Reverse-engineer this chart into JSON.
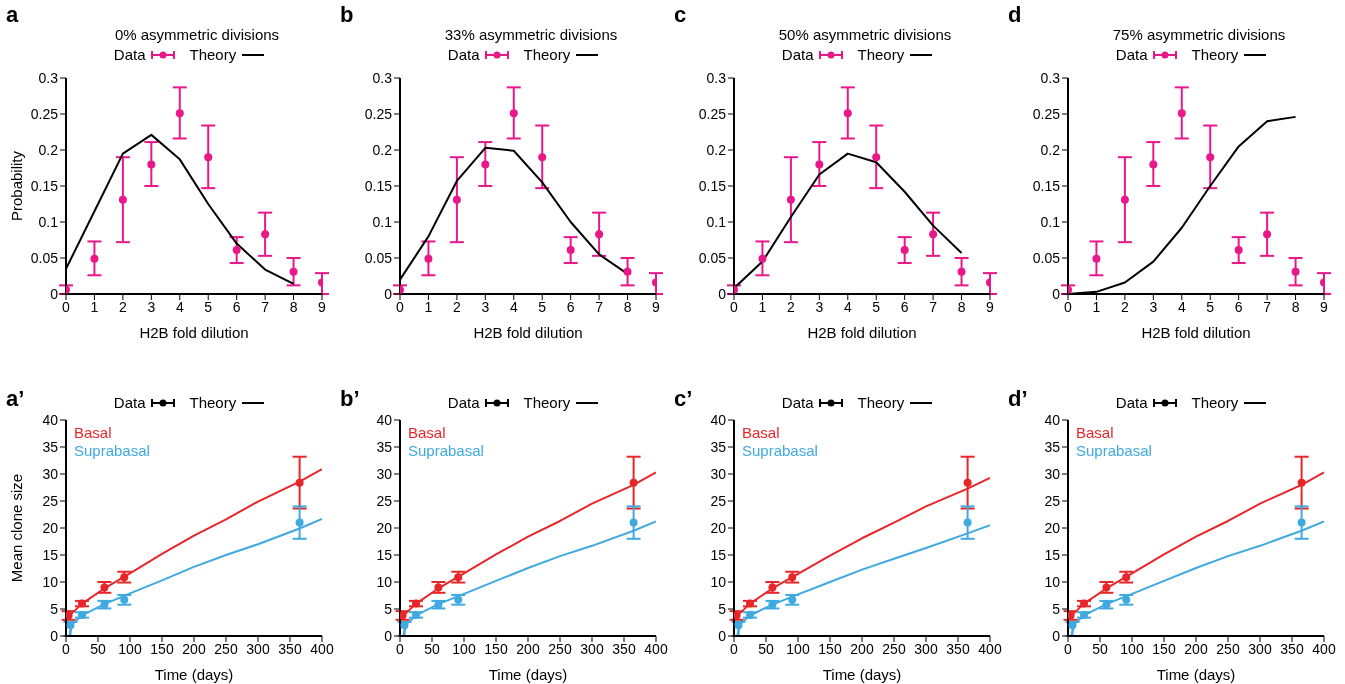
{
  "chart_data": [
    {
      "type": "scatter",
      "title": "0% asymmetric divisions",
      "xlabel": "H2B fold dilution",
      "ylabel": "Probability",
      "annotations": [
        "a"
      ],
      "legend": "top",
      "x": [
        0,
        1,
        2,
        3,
        4,
        5,
        6,
        7,
        8,
        9
      ],
      "xlim": [
        0,
        9
      ],
      "xticks": [
        0,
        1,
        2,
        3,
        4,
        5,
        6,
        7,
        8,
        9
      ],
      "ylim": [
        0,
        0.3
      ],
      "yticks": [
        0,
        0.05,
        0.1,
        0.15,
        0.2,
        0.25,
        0.3
      ],
      "series": [
        {
          "name": "Data",
          "marker": "circle",
          "color": "#e8178a",
          "values": [
            0.006,
            0.049,
            0.131,
            0.18,
            0.251,
            0.19,
            0.061,
            0.083,
            0.031,
            0.016
          ],
          "errors": [
            [
              0,
              0.012
            ],
            [
              0.026,
              0.073
            ],
            [
              0.072,
              0.19
            ],
            [
              0.15,
              0.211
            ],
            [
              0.216,
              0.287
            ],
            [
              0.147,
              0.234
            ],
            [
              0.043,
              0.079
            ],
            [
              0.053,
              0.113
            ],
            [
              0.012,
              0.05
            ],
            [
              0,
              0.029
            ]
          ]
        },
        {
          "name": "Theory",
          "type": "line",
          "marker": "none",
          "color": "#000000",
          "x": [
            0,
            1,
            2,
            3,
            4,
            5,
            6,
            7,
            8
          ],
          "values": [
            0.035,
            0.115,
            0.195,
            0.221,
            0.187,
            0.125,
            0.07,
            0.034,
            0.014
          ]
        }
      ]
    },
    {
      "type": "scatter",
      "title": "33% asymmetric divisions",
      "xlabel": "H2B fold dilution",
      "annotations": [
        "b"
      ],
      "legend": "top",
      "x": [
        0,
        1,
        2,
        3,
        4,
        5,
        6,
        7,
        8,
        9
      ],
      "xlim": [
        0,
        9
      ],
      "xticks": [
        0,
        1,
        2,
        3,
        4,
        5,
        6,
        7,
        8,
        9
      ],
      "ylim": [
        0,
        0.3
      ],
      "yticks": [
        0,
        0.05,
        0.1,
        0.15,
        0.2,
        0.25,
        0.3
      ],
      "series": [
        {
          "name": "Data",
          "marker": "circle",
          "color": "#e8178a",
          "values": [
            0.006,
            0.049,
            0.131,
            0.18,
            0.251,
            0.19,
            0.061,
            0.083,
            0.031,
            0.016
          ],
          "errors": [
            [
              0,
              0.012
            ],
            [
              0.026,
              0.073
            ],
            [
              0.072,
              0.19
            ],
            [
              0.15,
              0.211
            ],
            [
              0.216,
              0.287
            ],
            [
              0.147,
              0.234
            ],
            [
              0.043,
              0.079
            ],
            [
              0.053,
              0.113
            ],
            [
              0.012,
              0.05
            ],
            [
              0,
              0.029
            ]
          ]
        },
        {
          "name": "Theory",
          "type": "line",
          "marker": "none",
          "color": "#000000",
          "x": [
            0,
            1,
            2,
            3,
            4,
            5,
            6,
            7,
            8
          ],
          "values": [
            0.02,
            0.08,
            0.157,
            0.203,
            0.199,
            0.155,
            0.1,
            0.055,
            0.028
          ]
        }
      ]
    },
    {
      "type": "scatter",
      "title": "50% asymmetric divisions",
      "xlabel": "H2B fold dilution",
      "annotations": [
        "c"
      ],
      "legend": "top",
      "x": [
        0,
        1,
        2,
        3,
        4,
        5,
        6,
        7,
        8,
        9
      ],
      "xlim": [
        0,
        9
      ],
      "xticks": [
        0,
        1,
        2,
        3,
        4,
        5,
        6,
        7,
        8,
        9
      ],
      "ylim": [
        0,
        0.3
      ],
      "yticks": [
        0,
        0.05,
        0.1,
        0.15,
        0.2,
        0.25,
        0.3
      ],
      "series": [
        {
          "name": "Data",
          "marker": "circle",
          "color": "#e8178a",
          "values": [
            0.006,
            0.049,
            0.131,
            0.18,
            0.251,
            0.19,
            0.061,
            0.083,
            0.031,
            0.016
          ],
          "errors": [
            [
              0,
              0.012
            ],
            [
              0.026,
              0.073
            ],
            [
              0.072,
              0.19
            ],
            [
              0.15,
              0.211
            ],
            [
              0.216,
              0.287
            ],
            [
              0.147,
              0.234
            ],
            [
              0.043,
              0.079
            ],
            [
              0.053,
              0.113
            ],
            [
              0.012,
              0.05
            ],
            [
              0,
              0.029
            ]
          ]
        },
        {
          "name": "Theory",
          "type": "line",
          "marker": "none",
          "color": "#000000",
          "x": [
            0,
            1,
            2,
            3,
            4,
            5,
            6,
            7,
            8
          ],
          "values": [
            0.008,
            0.045,
            0.107,
            0.166,
            0.195,
            0.183,
            0.142,
            0.095,
            0.057
          ]
        }
      ]
    },
    {
      "type": "scatter",
      "title": "75% asymmetric divisions",
      "xlabel": "H2B fold dilution",
      "annotations": [
        "d"
      ],
      "legend": "top",
      "x": [
        0,
        1,
        2,
        3,
        4,
        5,
        6,
        7,
        8,
        9
      ],
      "xlim": [
        0,
        9
      ],
      "xticks": [
        0,
        1,
        2,
        3,
        4,
        5,
        6,
        7,
        8,
        9
      ],
      "ylim": [
        0,
        0.3
      ],
      "yticks": [
        0,
        0.05,
        0.1,
        0.15,
        0.2,
        0.25,
        0.3
      ],
      "series": [
        {
          "name": "Data",
          "marker": "circle",
          "color": "#e8178a",
          "values": [
            0.006,
            0.049,
            0.131,
            0.18,
            0.251,
            0.19,
            0.061,
            0.083,
            0.031,
            0.016
          ],
          "errors": [
            [
              0,
              0.012
            ],
            [
              0.026,
              0.073
            ],
            [
              0.072,
              0.19
            ],
            [
              0.15,
              0.211
            ],
            [
              0.216,
              0.287
            ],
            [
              0.147,
              0.234
            ],
            [
              0.043,
              0.079
            ],
            [
              0.053,
              0.113
            ],
            [
              0.012,
              0.05
            ],
            [
              0,
              0.029
            ]
          ]
        },
        {
          "name": "Theory",
          "type": "line",
          "marker": "none",
          "color": "#000000",
          "x": [
            0,
            1,
            2,
            3,
            4,
            5,
            6,
            7,
            8
          ],
          "values": [
            0,
            0.003,
            0.016,
            0.045,
            0.092,
            0.15,
            0.205,
            0.24,
            0.246
          ]
        }
      ]
    },
    {
      "type": "scatter",
      "xlabel": "Time (days)",
      "ylabel": "Mean clone size",
      "annotations": [
        "a’",
        "Data",
        "Theory"
      ],
      "legend": "top left",
      "xlim": [
        0,
        400
      ],
      "xticks": [
        0,
        50,
        100,
        150,
        200,
        250,
        300,
        350,
        400
      ],
      "ylim": [
        0,
        40
      ],
      "yticks": [
        0,
        5,
        10,
        15,
        20,
        25,
        30,
        35,
        40
      ],
      "series": [
        {
          "marker": "circle",
          "color": "#e8262a",
          "x": [
            4,
            25,
            60,
            91,
            365
          ],
          "values": [
            3.8,
            6.0,
            9.0,
            10.9,
            28.4
          ],
          "errors": [
            [
              3.0,
              4.6
            ],
            [
              5.5,
              6.5
            ],
            [
              8.0,
              10.0
            ],
            [
              9.9,
              11.9
            ],
            [
              23.6,
              33.2
            ]
          ]
        },
        {
          "name": "Basal",
          "type": "line",
          "marker": "none",
          "color": "#e8262a",
          "x": [
            3,
            25,
            60,
            100,
            150,
            200,
            250,
            300,
            365,
            400
          ],
          "values": [
            3.5,
            6.0,
            8.8,
            11.6,
            15.2,
            18.6,
            21.6,
            24.9,
            28.6,
            30.9
          ]
        },
        {
          "marker": "circle",
          "color": "#3fa9e0",
          "x": [
            7,
            25,
            60,
            91,
            365
          ],
          "values": [
            2.0,
            3.9,
            5.8,
            6.7,
            21.0
          ],
          "errors": [
            [
              0,
              2.6
            ],
            [
              3.4,
              4.4
            ],
            [
              5.1,
              6.5
            ],
            [
              5.8,
              7.6
            ],
            [
              18.0,
              24.0
            ]
          ]
        },
        {
          "name": "Suprabasal",
          "type": "line",
          "marker": "none",
          "color": "#3fa9e0",
          "x": [
            5,
            10,
            25,
            60,
            100,
            150,
            200,
            250,
            300,
            365,
            400
          ],
          "values": [
            0,
            2.2,
            3.8,
            5.9,
            7.9,
            10.3,
            12.8,
            15.0,
            17.0,
            19.9,
            21.7
          ]
        }
      ]
    },
    {
      "type": "scatter",
      "xlabel": "Time (days)",
      "annotations": [
        "b’",
        "Data",
        "Theory"
      ],
      "legend": "top left",
      "xlim": [
        0,
        400
      ],
      "xticks": [
        0,
        50,
        100,
        150,
        200,
        250,
        300,
        350,
        400
      ],
      "ylim": [
        0,
        40
      ],
      "yticks": [
        0,
        5,
        10,
        15,
        20,
        25,
        30,
        35,
        40
      ],
      "series": [
        {
          "marker": "circle",
          "color": "#e8262a",
          "x": [
            4,
            25,
            60,
            91,
            365
          ],
          "values": [
            3.8,
            6.0,
            9.0,
            10.9,
            28.4
          ],
          "errors": [
            [
              3.0,
              4.6
            ],
            [
              5.5,
              6.5
            ],
            [
              8.0,
              10.0
            ],
            [
              9.9,
              11.9
            ],
            [
              23.6,
              33.2
            ]
          ]
        },
        {
          "name": "Basal",
          "type": "line",
          "marker": "none",
          "color": "#e8262a",
          "x": [
            3,
            25,
            60,
            100,
            150,
            200,
            250,
            300,
            365,
            400
          ],
          "values": [
            3.5,
            6.0,
            8.8,
            11.6,
            15.1,
            18.4,
            21.3,
            24.5,
            28.0,
            30.3
          ]
        },
        {
          "marker": "circle",
          "color": "#3fa9e0",
          "x": [
            7,
            25,
            60,
            91,
            365
          ],
          "values": [
            2.0,
            3.9,
            5.8,
            6.7,
            21.0
          ],
          "errors": [
            [
              0,
              2.6
            ],
            [
              3.4,
              4.4
            ],
            [
              5.1,
              6.5
            ],
            [
              5.8,
              7.6
            ],
            [
              18.0,
              24.0
            ]
          ]
        },
        {
          "name": "Suprabasal",
          "type": "line",
          "marker": "none",
          "color": "#3fa9e0",
          "x": [
            5,
            10,
            25,
            60,
            100,
            150,
            200,
            250,
            300,
            365,
            400
          ],
          "values": [
            0,
            2.2,
            3.8,
            5.9,
            7.8,
            10.2,
            12.6,
            14.8,
            16.7,
            19.5,
            21.2
          ]
        }
      ]
    },
    {
      "type": "scatter",
      "xlabel": "Time (days)",
      "annotations": [
        "c’",
        "Data",
        "Theory"
      ],
      "legend": "top left",
      "xlim": [
        0,
        400
      ],
      "xticks": [
        0,
        50,
        100,
        150,
        200,
        250,
        300,
        350,
        400
      ],
      "ylim": [
        0,
        40
      ],
      "yticks": [
        0,
        5,
        10,
        15,
        20,
        25,
        30,
        35,
        40
      ],
      "series": [
        {
          "marker": "circle",
          "color": "#e8262a",
          "x": [
            4,
            25,
            60,
            91,
            365
          ],
          "values": [
            3.8,
            6.0,
            9.0,
            10.9,
            28.4
          ],
          "errors": [
            [
              3.0,
              4.6
            ],
            [
              5.5,
              6.5
            ],
            [
              8.0,
              10.0
            ],
            [
              9.9,
              11.9
            ],
            [
              23.6,
              33.2
            ]
          ]
        },
        {
          "name": "Basal",
          "type": "line",
          "marker": "none",
          "color": "#e8262a",
          "x": [
            3,
            25,
            60,
            100,
            150,
            200,
            250,
            300,
            365,
            400
          ],
          "values": [
            3.5,
            6.0,
            8.8,
            11.5,
            14.9,
            18.1,
            21.0,
            24.0,
            27.3,
            29.3
          ]
        },
        {
          "marker": "circle",
          "color": "#3fa9e0",
          "x": [
            7,
            25,
            60,
            91,
            365
          ],
          "values": [
            2.0,
            3.9,
            5.8,
            6.7,
            21.0
          ],
          "errors": [
            [
              0,
              2.6
            ],
            [
              3.4,
              4.4
            ],
            [
              5.1,
              6.5
            ],
            [
              5.8,
              7.6
            ],
            [
              18.0,
              24.0
            ]
          ]
        },
        {
          "name": "Suprabasal",
          "type": "line",
          "marker": "none",
          "color": "#3fa9e0",
          "x": [
            5,
            10,
            25,
            60,
            100,
            150,
            200,
            250,
            300,
            365,
            400
          ],
          "values": [
            0,
            2.2,
            3.8,
            5.8,
            7.7,
            10.0,
            12.3,
            14.3,
            16.3,
            19.0,
            20.5
          ]
        }
      ]
    },
    {
      "type": "scatter",
      "xlabel": "Time (days)",
      "annotations": [
        "d’",
        "Data",
        "Theory"
      ],
      "legend": "top left",
      "xlim": [
        0,
        400
      ],
      "xticks": [
        0,
        50,
        100,
        150,
        200,
        250,
        300,
        350,
        400
      ],
      "ylim": [
        0,
        40
      ],
      "yticks": [
        0,
        5,
        10,
        15,
        20,
        25,
        30,
        35,
        40
      ],
      "series": [
        {
          "marker": "circle",
          "color": "#e8262a",
          "x": [
            4,
            25,
            60,
            91,
            365
          ],
          "values": [
            3.8,
            6.0,
            9.0,
            10.9,
            28.4
          ],
          "errors": [
            [
              3.0,
              4.6
            ],
            [
              5.5,
              6.5
            ],
            [
              8.0,
              10.0
            ],
            [
              9.9,
              11.9
            ],
            [
              23.6,
              33.2
            ]
          ]
        },
        {
          "name": "Basal",
          "type": "line",
          "marker": "none",
          "color": "#e8262a",
          "x": [
            3,
            25,
            60,
            100,
            150,
            200,
            250,
            300,
            365,
            400
          ],
          "values": [
            3.5,
            6.0,
            8.8,
            11.6,
            15.1,
            18.4,
            21.3,
            24.5,
            28.0,
            30.3
          ]
        },
        {
          "marker": "circle",
          "color": "#3fa9e0",
          "x": [
            7,
            25,
            60,
            91,
            365
          ],
          "values": [
            2.0,
            3.9,
            5.8,
            6.7,
            21.0
          ],
          "errors": [
            [
              0,
              2.6
            ],
            [
              3.4,
              4.4
            ],
            [
              5.1,
              6.5
            ],
            [
              5.8,
              7.6
            ],
            [
              18.0,
              24.0
            ]
          ]
        },
        {
          "name": "Suprabasal",
          "type": "line",
          "marker": "none",
          "color": "#3fa9e0",
          "x": [
            5,
            10,
            25,
            60,
            100,
            150,
            200,
            250,
            300,
            365,
            400
          ],
          "values": [
            0,
            2.2,
            3.8,
            5.9,
            7.8,
            10.2,
            12.6,
            14.8,
            16.7,
            19.5,
            21.2
          ]
        }
      ]
    }
  ]
}
